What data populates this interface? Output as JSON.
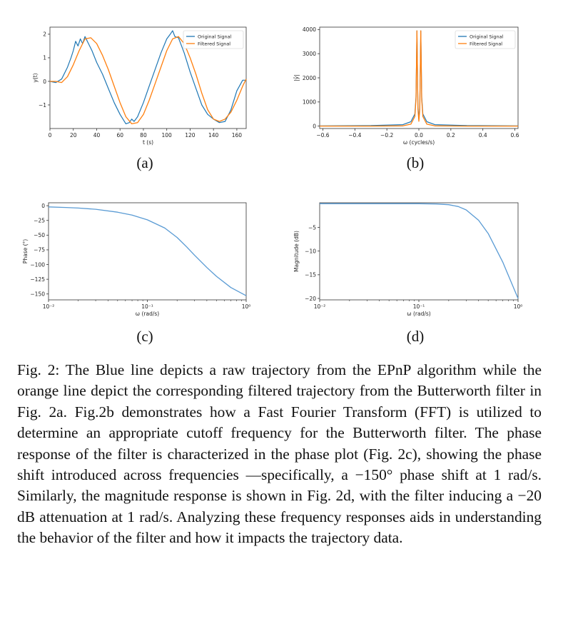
{
  "figures": [
    {
      "sublabel": "(a)"
    },
    {
      "sublabel": "(b)"
    },
    {
      "sublabel": "(c)"
    },
    {
      "sublabel": "(d)"
    }
  ],
  "colors": {
    "original": "#1f77b4",
    "filtered": "#ff7f0e",
    "line": "#5a9bd4"
  },
  "caption": "Fig. 2: The Blue line depicts a raw trajectory from the EPnP algorithm while the orange line depict the corresponding filtered trajectory from the Butterworth filter in Fig. 2a. Fig.2b demonstrates how a Fast Fourier Transform (FFT) is utilized to determine an appropriate cutoff frequency for the Butterworth filter. The phase response of the filter is characterized in the phase plot (Fig. 2c), showing the phase shift introduced across frequencies —specifically, a −150° phase shift at 1 rad/s. Similarly, the magnitude response is shown in Fig. 2d, with the filter inducing a −20 dB attenuation at 1 rad/s. Analyzing these frequency responses aids in understanding the behavior of the filter and how it impacts the trajectory data.",
  "chart_data": [
    {
      "type": "line",
      "xlabel": "t (s)",
      "ylabel": "y(t)",
      "xlim": [
        0,
        168
      ],
      "ylim": [
        -2.0,
        2.3
      ],
      "xticks": [
        "0",
        "20",
        "40",
        "60",
        "80",
        "100",
        "120",
        "140",
        "160"
      ],
      "yticks": [
        "2",
        "1",
        "0",
        "−1"
      ],
      "legend": "top-right",
      "series": [
        {
          "name": "Original Signal",
          "x": [
            0,
            5,
            10,
            15,
            18,
            20,
            22,
            24,
            26,
            28,
            30,
            33,
            36,
            40,
            45,
            50,
            55,
            60,
            65,
            68,
            70,
            72,
            75,
            80,
            85,
            90,
            95,
            100,
            103,
            105,
            107,
            110,
            115,
            120,
            125,
            130,
            135,
            140,
            145,
            150,
            155,
            160,
            165,
            168
          ],
          "y": [
            0,
            -0.05,
            0.1,
            0.6,
            1.0,
            1.3,
            1.7,
            1.5,
            1.8,
            1.6,
            1.9,
            1.6,
            1.3,
            0.8,
            0.3,
            -0.3,
            -0.9,
            -1.4,
            -1.8,
            -1.75,
            -1.6,
            -1.7,
            -1.5,
            -0.9,
            -0.2,
            0.5,
            1.2,
            1.8,
            2.0,
            2.15,
            1.9,
            1.85,
            1.2,
            0.4,
            -0.3,
            -1.0,
            -1.4,
            -1.6,
            -1.75,
            -1.7,
            -1.2,
            -0.4,
            0.05,
            0.05
          ]
        },
        {
          "name": "Filtered Signal",
          "x": [
            0,
            5,
            10,
            15,
            20,
            25,
            30,
            35,
            40,
            45,
            50,
            55,
            60,
            65,
            70,
            75,
            80,
            85,
            90,
            95,
            100,
            105,
            110,
            115,
            120,
            125,
            130,
            135,
            140,
            145,
            150,
            155,
            160,
            165,
            168
          ],
          "y": [
            0,
            0,
            -0.05,
            0.2,
            0.7,
            1.3,
            1.8,
            1.85,
            1.6,
            1.1,
            0.5,
            -0.2,
            -0.9,
            -1.5,
            -1.8,
            -1.75,
            -1.4,
            -0.8,
            -0.1,
            0.6,
            1.3,
            1.8,
            1.9,
            1.6,
            1.0,
            0.3,
            -0.5,
            -1.2,
            -1.6,
            -1.7,
            -1.6,
            -1.3,
            -0.8,
            -0.2,
            0.1
          ]
        }
      ]
    },
    {
      "type": "line",
      "xlabel": "ω (cycles/s)",
      "ylabel": "|ŷ|",
      "xlim": [
        -0.62,
        0.62
      ],
      "ylim": [
        -100,
        4100
      ],
      "xticks": [
        "−0.6",
        "−0.4",
        "−0.2",
        "0.0",
        "0.2",
        "0.4",
        "0.6"
      ],
      "yticks": [
        "4000",
        "3000",
        "2000",
        "1000",
        "0"
      ],
      "legend": "top-right",
      "series": [
        {
          "name": "Original Signal",
          "x": [
            -0.62,
            -0.3,
            -0.1,
            -0.05,
            -0.025,
            -0.018,
            -0.012,
            -0.006,
            0.0,
            0.006,
            0.012,
            0.018,
            0.025,
            0.05,
            0.1,
            0.3,
            0.62
          ],
          "y": [
            10,
            20,
            60,
            180,
            500,
            1200,
            3950,
            800,
            300,
            800,
            3950,
            1200,
            500,
            180,
            60,
            20,
            10
          ]
        },
        {
          "name": "Filtered Signal",
          "x": [
            -0.62,
            -0.3,
            -0.1,
            -0.05,
            -0.025,
            -0.018,
            -0.012,
            -0.006,
            0.0,
            0.006,
            0.012,
            0.018,
            0.025,
            0.05,
            0.1,
            0.3,
            0.62
          ],
          "y": [
            0,
            0,
            10,
            80,
            400,
            1100,
            3950,
            700,
            200,
            700,
            3950,
            1100,
            400,
            80,
            10,
            0,
            0
          ]
        }
      ]
    },
    {
      "type": "line",
      "xlabel": "ω (rad/s)",
      "ylabel": "Phase (°)",
      "xscale": "log",
      "xlim": [
        0.01,
        1.0
      ],
      "ylim": [
        -160,
        5
      ],
      "xticks": [
        "10⁻²",
        "10⁻¹",
        "10⁰"
      ],
      "yticks": [
        "0",
        "−25",
        "−50",
        "−75",
        "−100",
        "−125",
        "−150"
      ],
      "series": [
        {
          "x": [
            0.01,
            0.015,
            0.02,
            0.03,
            0.05,
            0.07,
            0.1,
            0.15,
            0.2,
            0.25,
            0.3,
            0.4,
            0.5,
            0.7,
            1.0
          ],
          "y": [
            -2,
            -3,
            -4,
            -6,
            -11,
            -16,
            -24,
            -38,
            -54,
            -70,
            -84,
            -105,
            -120,
            -139,
            -153
          ]
        }
      ]
    },
    {
      "type": "line",
      "xlabel": "ω (rad/s)",
      "ylabel": "Magnitude (dB)",
      "xscale": "log",
      "xlim": [
        0.01,
        1.0
      ],
      "ylim": [
        -20.3,
        0.2
      ],
      "xticks": [
        "10⁻²",
        "10⁻¹",
        "10⁰"
      ],
      "yticks": [
        "−5",
        "−10",
        "−15",
        "−20"
      ],
      "series": [
        {
          "x": [
            0.01,
            0.05,
            0.1,
            0.15,
            0.2,
            0.25,
            0.3,
            0.4,
            0.5,
            0.7,
            1.0
          ],
          "y": [
            0,
            0,
            0,
            -0.05,
            -0.2,
            -0.6,
            -1.3,
            -3.5,
            -6.3,
            -12.3,
            -20
          ]
        }
      ]
    }
  ]
}
